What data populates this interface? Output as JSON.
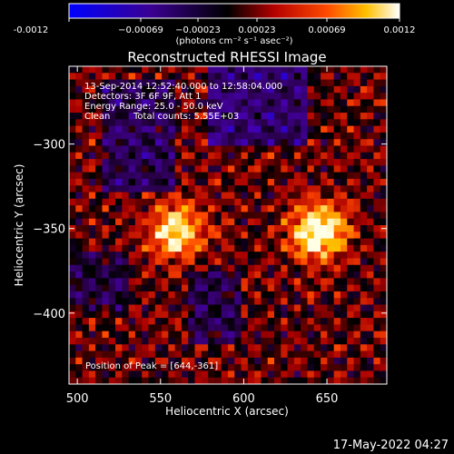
{
  "chart_data": {
    "type": "heatmap",
    "title": "Reconstructed RHESSI Image",
    "xlabel": "Heliocentric X (arcsec)",
    "ylabel": "Heliocentric Y (arcsec)",
    "xlim": [
      495,
      686
    ],
    "ylim": [
      -442,
      -254
    ],
    "x_ticks": [
      500,
      550,
      600,
      650
    ],
    "y_ticks": [
      -300,
      -350,
      -400
    ],
    "colorbar": {
      "range": [
        -0.0012,
        0.0012
      ],
      "tick_labels": [
        "-0.0012",
        "−0.00069",
        "−0.00023",
        "0.00023",
        "0.00069",
        "0.0012"
      ],
      "unit_label": "(photons cm⁻² s⁻¹ asec⁻²)",
      "colors": [
        "#0000ff",
        "#000000",
        "#ff0000",
        "#ffffff"
      ]
    },
    "annotations": {
      "time_range": "13-Sep-2014 12:52:40.000 to 12:58:04.000",
      "detectors": "Detectors: 3F 6F 9F, Att 1",
      "energy": "Energy Range: 25.0 - 50.0 keV",
      "method": "Clean",
      "counts": "Total counts: 5.55E+03",
      "peak": "Position of Peak = [644,-361]"
    },
    "sources": [
      {
        "x": 645,
        "y": -352,
        "intensity": 0.0012
      },
      {
        "x": 560,
        "y": -352,
        "intensity": 0.00095
      }
    ],
    "peak": {
      "x": 644,
      "y": -361
    }
  },
  "footer": {
    "timestamp": "17-May-2022 04:27"
  }
}
